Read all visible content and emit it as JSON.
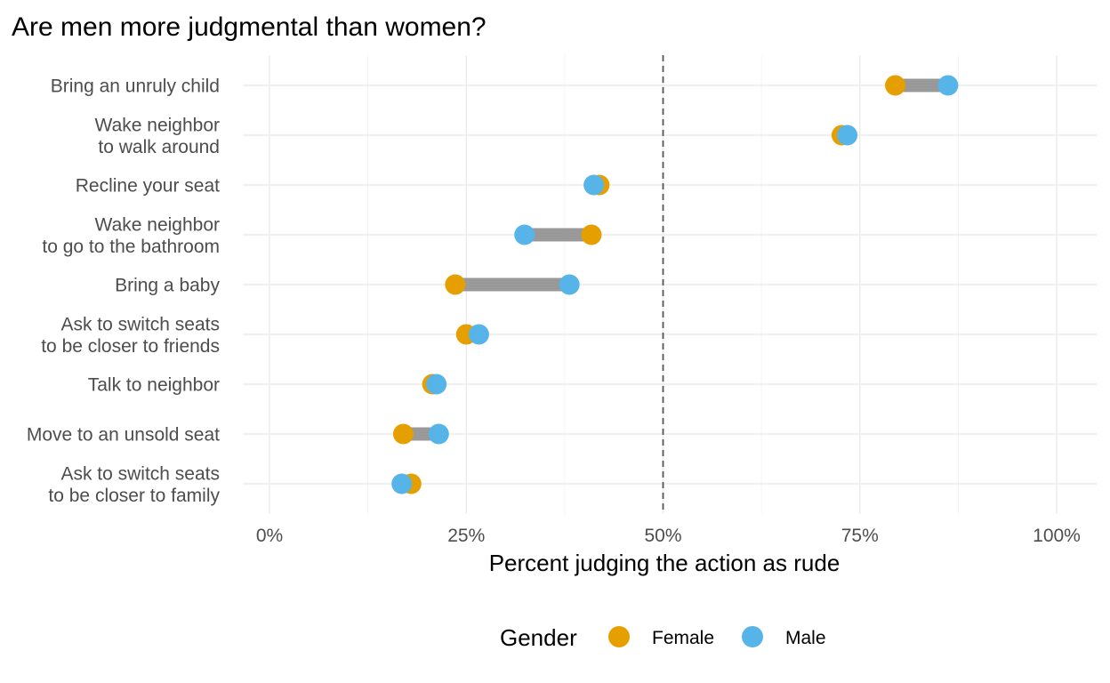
{
  "chart_data": {
    "type": "dumbbell",
    "title": "Are men more judgmental than women?",
    "xlabel": "Percent judging the action as rude",
    "ylabel": "",
    "xlim": [
      0,
      1.03
    ],
    "x_ticks": [
      {
        "value": 0,
        "label": "0%"
      },
      {
        "value": 0.25,
        "label": "25%"
      },
      {
        "value": 0.5,
        "label": "50%"
      },
      {
        "value": 0.75,
        "label": "75%"
      },
      {
        "value": 1.0,
        "label": "100%"
      }
    ],
    "reference_line": {
      "value": 0.5,
      "style": "dashed"
    },
    "grid": true,
    "categories": [
      [
        "Bring an unruly child"
      ],
      [
        "Wake neighbor",
        "to walk around"
      ],
      [
        "Recline your seat"
      ],
      [
        "Wake neighbor",
        "to go to the bathroom"
      ],
      [
        "Bring a baby"
      ],
      [
        "Ask to switch seats",
        "to be closer to friends"
      ],
      [
        "Talk to neighbor"
      ],
      [
        "Move to an unsold seat"
      ],
      [
        "Ask to switch seats",
        "to be closer to family"
      ]
    ],
    "series": [
      {
        "name": "Female",
        "color": "#E69F00",
        "values": [
          0.795,
          0.727,
          0.419,
          0.409,
          0.236,
          0.25,
          0.207,
          0.17,
          0.18
        ]
      },
      {
        "name": "Male",
        "color": "#56B4E9",
        "values": [
          0.862,
          0.734,
          0.412,
          0.324,
          0.381,
          0.266,
          0.212,
          0.215,
          0.168
        ]
      }
    ],
    "segment_color": "#999999",
    "legend": {
      "title": "Gender",
      "placement": "bottom"
    }
  }
}
